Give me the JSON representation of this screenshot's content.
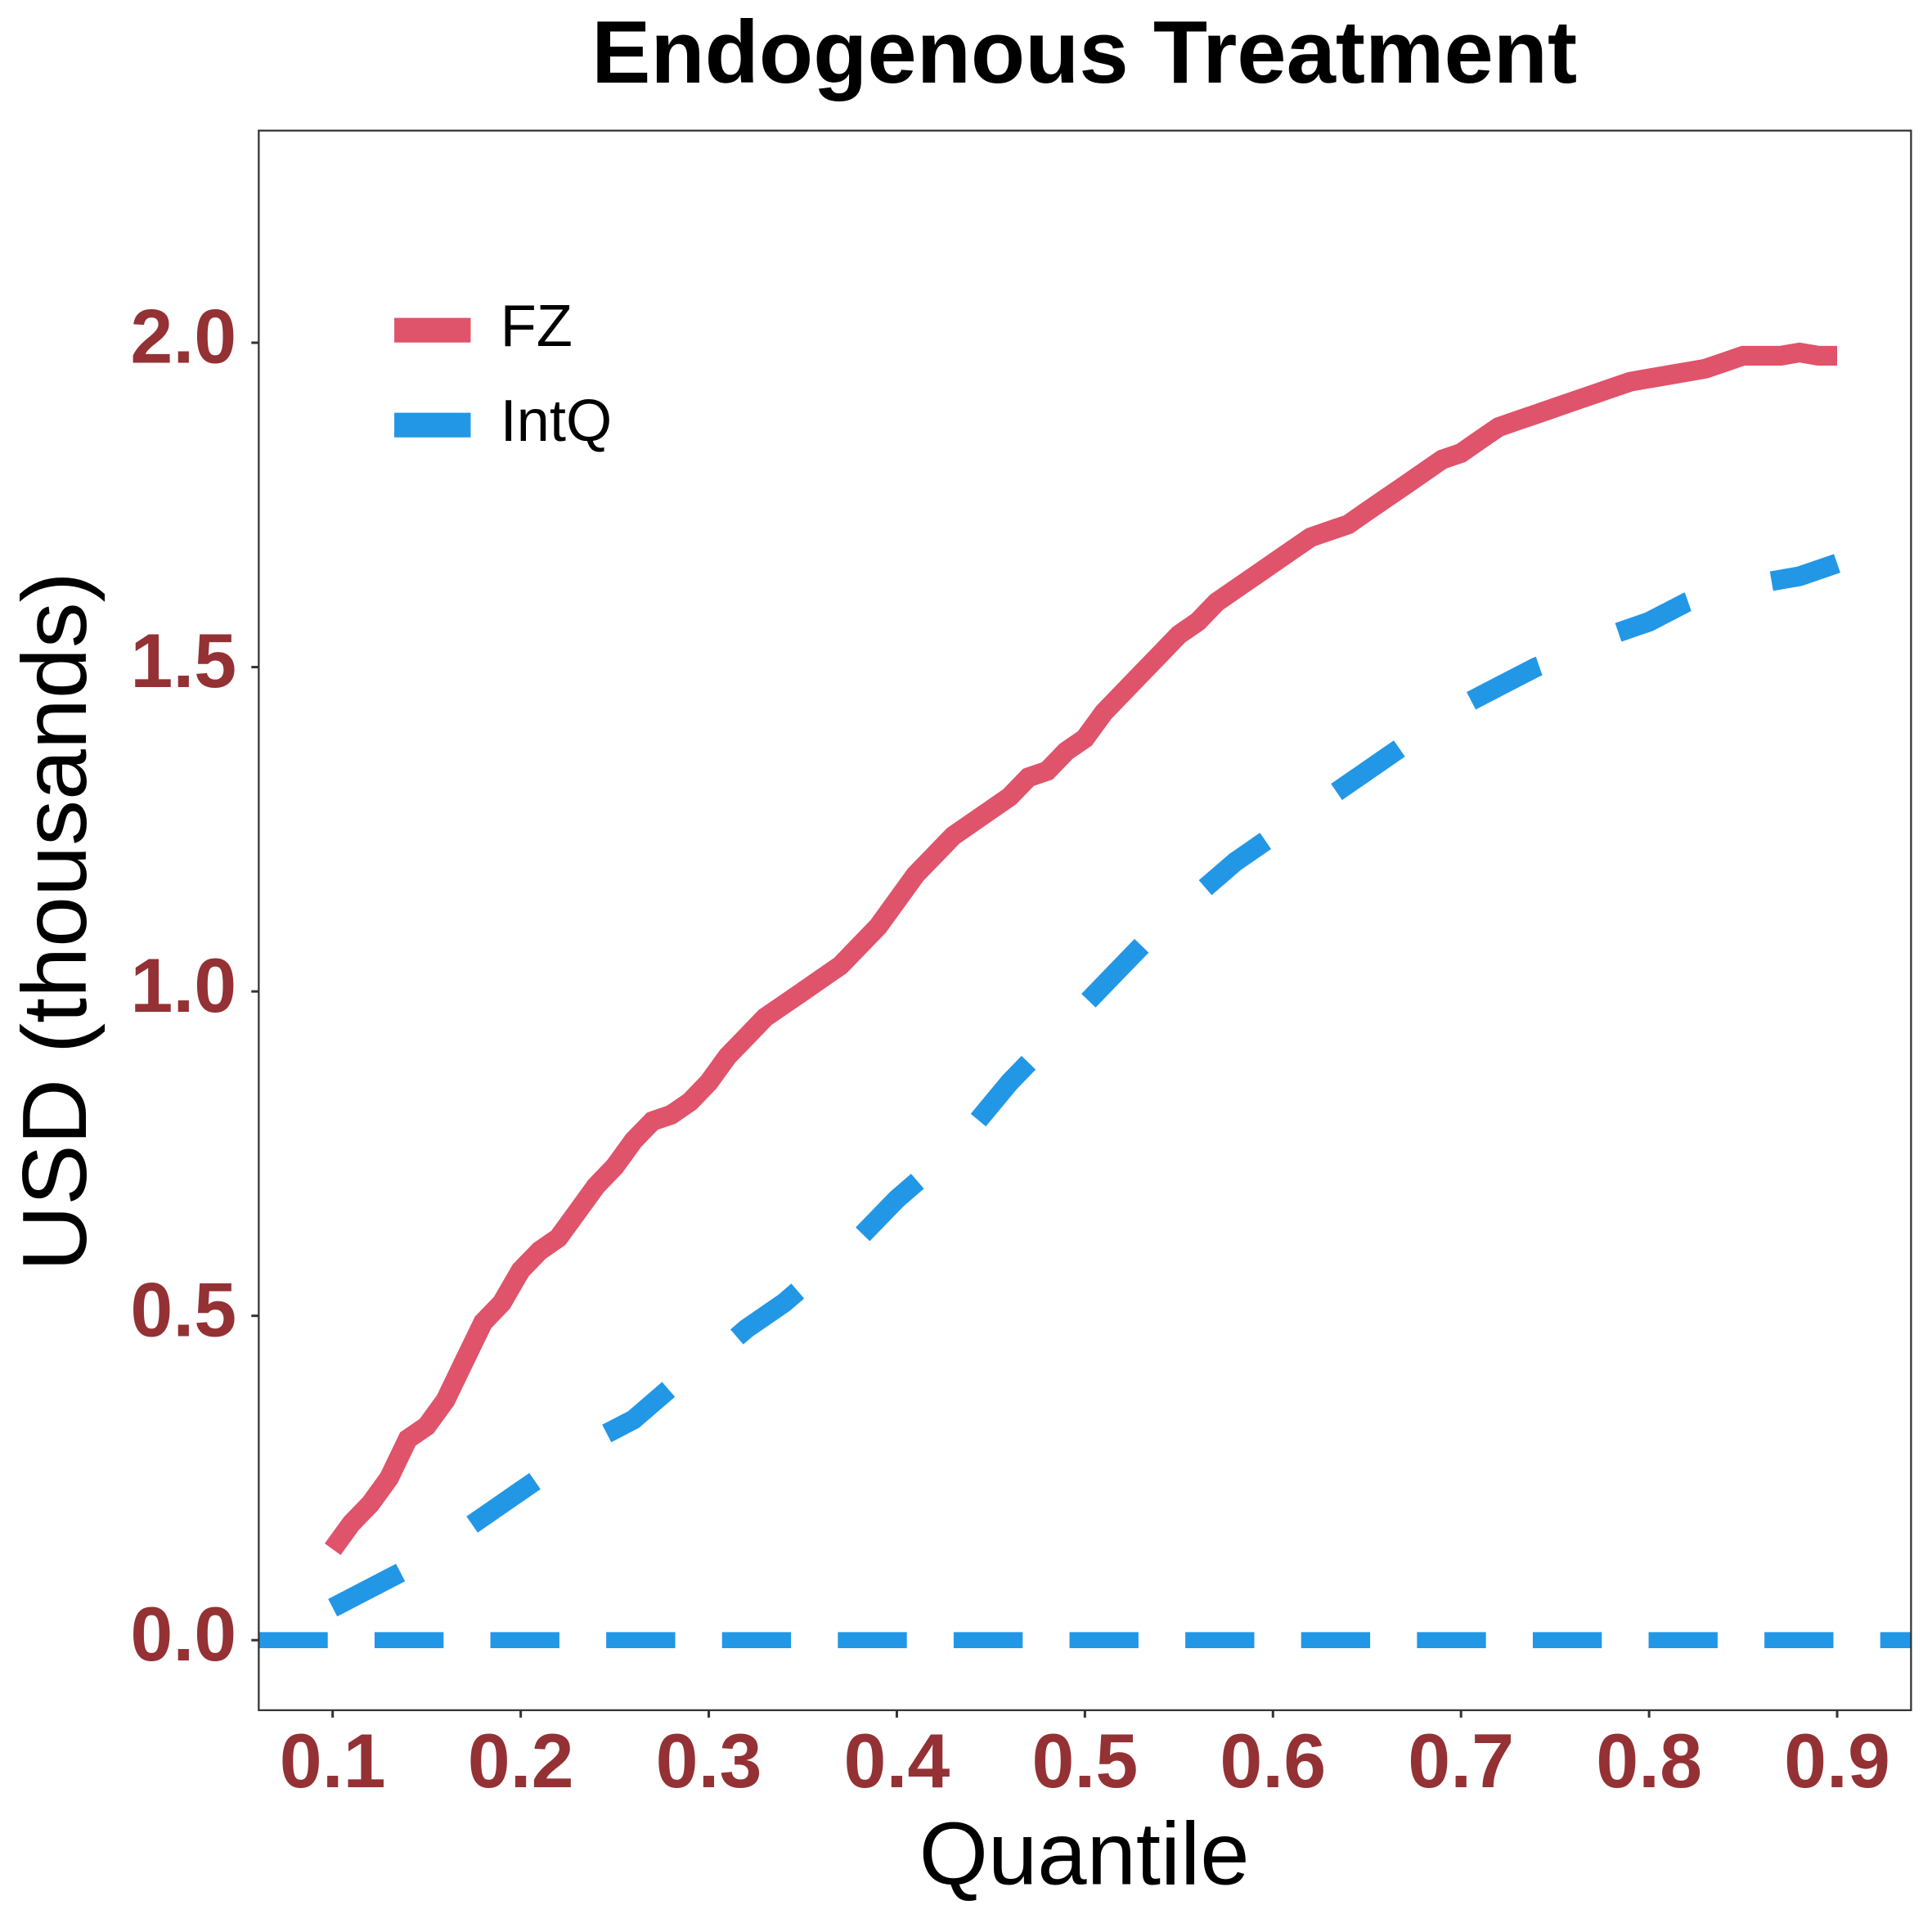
{
  "chart_data": {
    "type": "line",
    "title": "Endogenous Treatment",
    "x_label": "Quantile",
    "y_label": "USD (thousands)",
    "xlim": [
      0.0607,
      0.9393
    ],
    "ylim": [
      -0.108,
      2.327
    ],
    "xticks": [
      0.1,
      0.2,
      0.3,
      0.4,
      0.5,
      0.6,
      0.7,
      0.8,
      0.9
    ],
    "yticks": [
      {
        "value": 0,
        "label": "0.0"
      },
      0.5,
      {
        "value": 1,
        "label": "1.0"
      },
      1.5,
      {
        "value": 2,
        "label": "2.0"
      }
    ],
    "grid": false,
    "legend": "top-left",
    "hline": {
      "value": 0,
      "color": "#2297E6",
      "dash": "dashed"
    },
    "series": [
      {
        "name": "FZ",
        "color": "#DF536B",
        "dash": "solid",
        "x": [
          0.1,
          0.11,
          0.12,
          0.13,
          0.14,
          0.15,
          0.16,
          0.17,
          0.18,
          0.19,
          0.2,
          0.21,
          0.22,
          0.23,
          0.24,
          0.25,
          0.26,
          0.27,
          0.28,
          0.29,
          0.3,
          0.31,
          0.32,
          0.33,
          0.34,
          0.35,
          0.36,
          0.37,
          0.38,
          0.39,
          0.4,
          0.41,
          0.42,
          0.43,
          0.44,
          0.45,
          0.46,
          0.47,
          0.48,
          0.49,
          0.5,
          0.51,
          0.52,
          0.53,
          0.54,
          0.55,
          0.56,
          0.57,
          0.58,
          0.59,
          0.6,
          0.61,
          0.62,
          0.63,
          0.64,
          0.65,
          0.66,
          0.67,
          0.68,
          0.69,
          0.7,
          0.71,
          0.72,
          0.73,
          0.74,
          0.75,
          0.76,
          0.77,
          0.78,
          0.79,
          0.8,
          0.81,
          0.82,
          0.83,
          0.84,
          0.85,
          0.86,
          0.87,
          0.88,
          0.89,
          0.9
        ],
        "values": [
          0.14,
          0.18,
          0.21,
          0.25,
          0.31,
          0.33,
          0.37,
          0.43,
          0.49,
          0.52,
          0.57,
          0.6,
          0.62,
          0.66,
          0.7,
          0.73,
          0.77,
          0.8,
          0.81,
          0.83,
          0.86,
          0.9,
          0.93,
          0.96,
          0.98,
          1.0,
          1.02,
          1.04,
          1.07,
          1.1,
          1.14,
          1.18,
          1.21,
          1.24,
          1.26,
          1.28,
          1.3,
          1.33,
          1.34,
          1.37,
          1.39,
          1.43,
          1.46,
          1.49,
          1.52,
          1.55,
          1.57,
          1.6,
          1.62,
          1.64,
          1.66,
          1.68,
          1.7,
          1.71,
          1.72,
          1.74,
          1.76,
          1.78,
          1.8,
          1.82,
          1.83,
          1.85,
          1.87,
          1.88,
          1.89,
          1.9,
          1.91,
          1.92,
          1.93,
          1.94,
          1.945,
          1.95,
          1.955,
          1.96,
          1.97,
          1.98,
          1.98,
          1.98,
          1.985,
          1.98,
          1.98
        ]
      },
      {
        "name": "IntQ",
        "color": "#2297E6",
        "dash": "dashed",
        "x": [
          0.1,
          0.12,
          0.14,
          0.16,
          0.18,
          0.2,
          0.22,
          0.24,
          0.26,
          0.28,
          0.3,
          0.32,
          0.34,
          0.36,
          0.38,
          0.4,
          0.42,
          0.44,
          0.46,
          0.48,
          0.5,
          0.52,
          0.54,
          0.56,
          0.58,
          0.6,
          0.62,
          0.64,
          0.66,
          0.68,
          0.7,
          0.72,
          0.74,
          0.76,
          0.78,
          0.8,
          0.82,
          0.84,
          0.86,
          0.88,
          0.9
        ],
        "values": [
          0.05,
          0.08,
          0.11,
          0.15,
          0.19,
          0.23,
          0.27,
          0.31,
          0.34,
          0.39,
          0.43,
          0.48,
          0.52,
          0.57,
          0.62,
          0.68,
          0.73,
          0.79,
          0.86,
          0.92,
          0.98,
          1.04,
          1.1,
          1.15,
          1.2,
          1.24,
          1.28,
          1.32,
          1.36,
          1.4,
          1.44,
          1.47,
          1.5,
          1.52,
          1.55,
          1.57,
          1.6,
          1.62,
          1.63,
          1.64,
          1.66
        ]
      }
    ]
  }
}
